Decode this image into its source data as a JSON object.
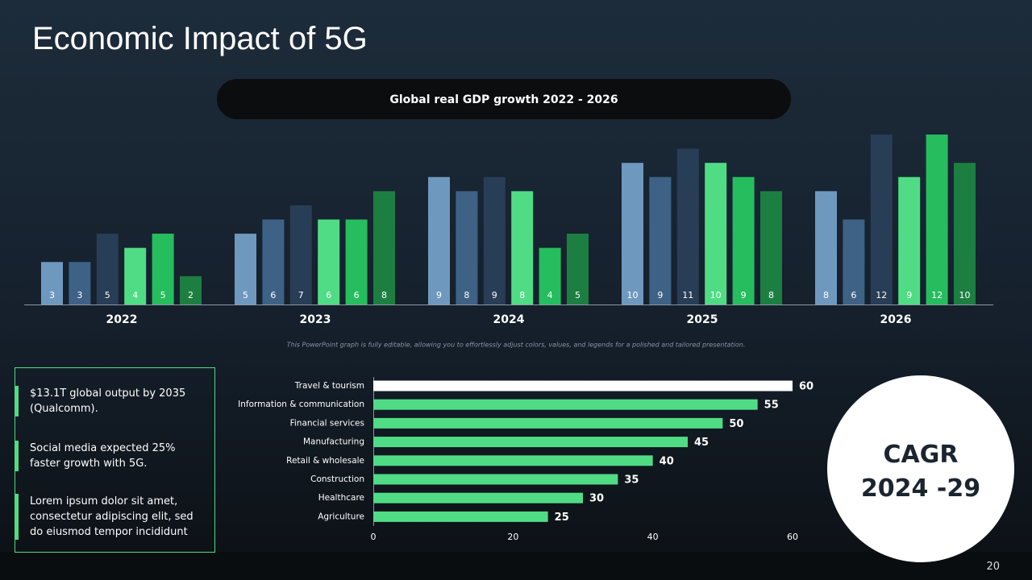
{
  "title": "Economic Impact of 5G",
  "notes": [
    "$13.1T global output by 2035 (Qualcomm).",
    "Social media expected 25% faster growth with 5G.",
    "Lorem ipsum dolor sit amet, consectetur adipiscing elit, sed do eiusmod tempor incididunt"
  ],
  "cagr": [
    "CAGR",
    "2024 -29"
  ],
  "page_number": "20",
  "chart_data": [
    {
      "type": "bar",
      "title": "Global real GDP growth 2022 - 2026",
      "categories": [
        "2022",
        "2023",
        "2024",
        "2025",
        "2026"
      ],
      "series": [
        {
          "color": "#6f98bf",
          "values": [
            3,
            5,
            9,
            10,
            8
          ]
        },
        {
          "color": "#3e6285",
          "values": [
            3,
            6,
            8,
            9,
            6
          ]
        },
        {
          "color": "#283d56",
          "values": [
            5,
            7,
            9,
            11,
            12
          ]
        },
        {
          "color": "#4fdc85",
          "values": [
            4,
            6,
            8,
            10,
            9
          ]
        },
        {
          "color": "#26bd5f",
          "values": [
            5,
            6,
            4,
            9,
            12
          ]
        },
        {
          "color": "#1c7f41",
          "values": [
            2,
            8,
            5,
            8,
            10
          ]
        }
      ],
      "note": "This PowerPoint graph is fully editable, allowing you to effortlessly adjust colors, values, and legends for a polished and tailored presentation."
    },
    {
      "type": "hbar",
      "categories": [
        "Travel & tourism",
        "Information & communication",
        "Financial services",
        "Manufacturing",
        "Retail & wholesale",
        "Construction",
        "Healthcare",
        "Agriculture"
      ],
      "values": [
        60,
        55,
        50,
        45,
        40,
        35,
        30,
        25
      ],
      "colors": [
        "#ffffff",
        "#4fdc85",
        "#4fdc85",
        "#4fdc85",
        "#4fdc85",
        "#4fdc85",
        "#4fdc85",
        "#4fdc85"
      ],
      "xlim": [
        0,
        60
      ],
      "xticks": [
        0,
        20,
        40,
        60
      ]
    }
  ]
}
